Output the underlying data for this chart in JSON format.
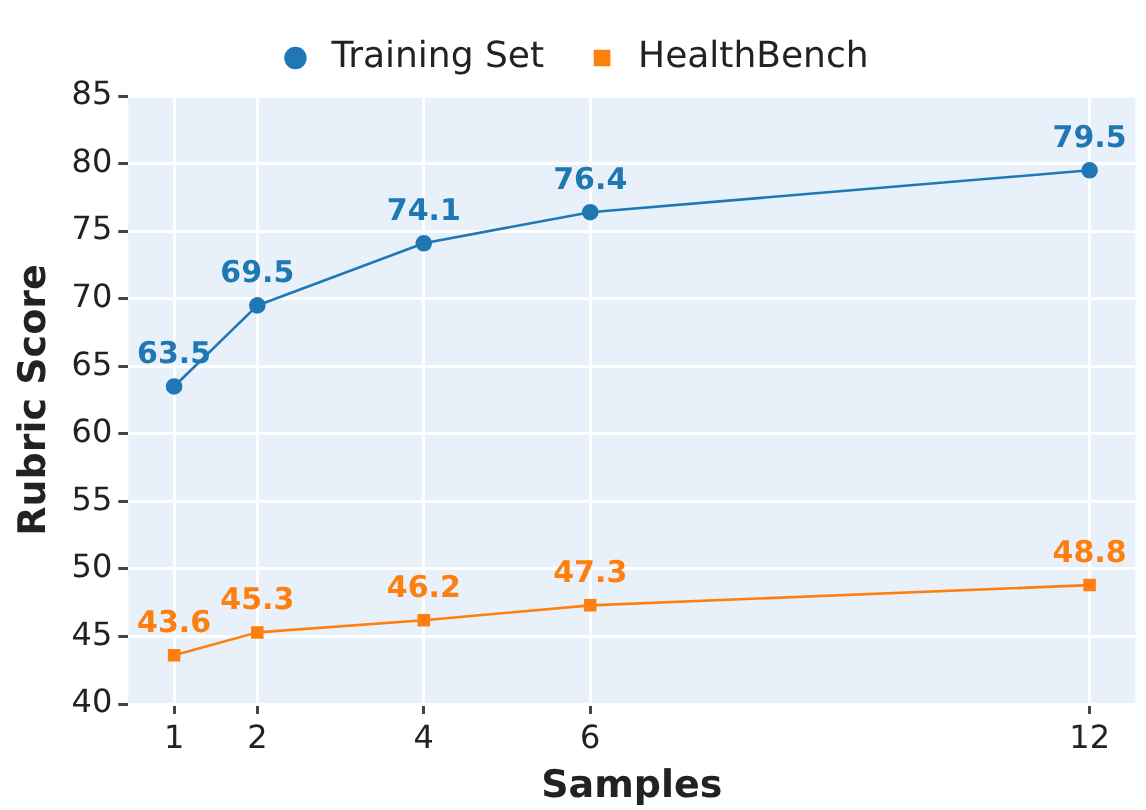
{
  "chart_data": {
    "type": "line",
    "xlabel": "Samples",
    "ylabel": "Rubric Score",
    "x": [
      1,
      2,
      4,
      6,
      12
    ],
    "series": [
      {
        "name": "Training Set",
        "color": "#1f77b4",
        "values": [
          63.5,
          69.5,
          74.1,
          76.4,
          79.5
        ],
        "marker": "circle"
      },
      {
        "name": "HealthBench",
        "color": "#ff7f0e",
        "values": [
          43.6,
          45.3,
          46.2,
          47.3,
          48.8
        ],
        "marker": "square"
      }
    ],
    "xlim": [
      0.45,
      12.55
    ],
    "xticks": [
      1,
      2,
      4,
      6,
      12
    ],
    "ylim": [
      40,
      85
    ],
    "yticks": [
      40,
      45,
      50,
      55,
      60,
      65,
      70,
      75,
      80,
      85
    ],
    "grid": true,
    "legend": "top",
    "data_labels": true,
    "line_style": "solid"
  }
}
